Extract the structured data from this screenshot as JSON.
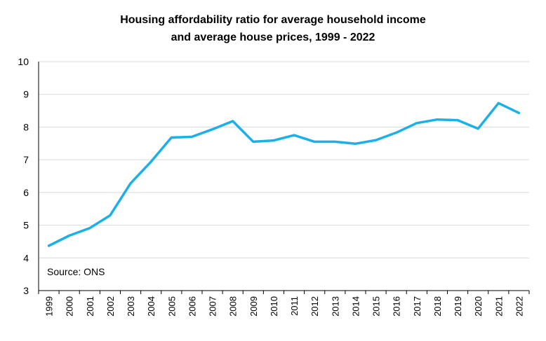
{
  "chart_data": {
    "type": "line",
    "title": "Housing affordability ratio for average household income and average house prices, 1999 - 2022",
    "title_lines": [
      "Housing affordability ratio for average household income",
      "and average house prices, 1999 - 2022"
    ],
    "annotation": "Source: ONS",
    "xlabel": "",
    "ylabel": "",
    "ylim": [
      3,
      10
    ],
    "yticks": [
      "3",
      "4",
      "5",
      "6",
      "7",
      "8",
      "9",
      "10"
    ],
    "grid": true,
    "legend": "none",
    "line_color": "#1cb0e8",
    "categories": [
      "1999",
      "2000",
      "2001",
      "2002",
      "2003",
      "2004",
      "2005",
      "2006",
      "2007",
      "2008",
      "2009",
      "2010",
      "2011",
      "2012",
      "2013",
      "2014",
      "2015",
      "2016",
      "2017",
      "2018",
      "2019",
      "2020",
      "2021",
      "2022"
    ],
    "series": [
      {
        "values": [
          4.37,
          4.68,
          4.91,
          5.3,
          6.28,
          6.94,
          7.68,
          7.7,
          7.93,
          8.18,
          7.55,
          7.59,
          7.75,
          7.55,
          7.55,
          7.49,
          7.6,
          7.83,
          8.12,
          8.23,
          8.21,
          7.95,
          8.73,
          8.43
        ]
      }
    ]
  }
}
